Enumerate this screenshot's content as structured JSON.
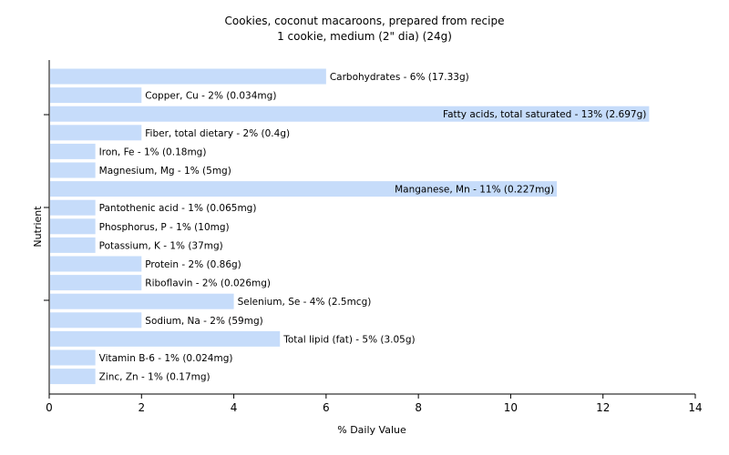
{
  "chart_data": {
    "type": "bar",
    "orientation": "horizontal",
    "title": "Cookies, coconut macaroons, prepared from recipe",
    "subtitle": "1 cookie, medium (2\" dia) (24g)",
    "xlabel": "% Daily Value",
    "ylabel": "Nutrient",
    "xlim": [
      0,
      14
    ],
    "xticks": [
      0,
      2,
      4,
      6,
      8,
      10,
      12,
      14
    ],
    "grid": false,
    "bar_color": "#c6dcfa",
    "categories": [
      "Carbohydrates",
      "Copper, Cu",
      "Fatty acids, total saturated",
      "Fiber, total dietary",
      "Iron, Fe",
      "Magnesium, Mg",
      "Manganese, Mn",
      "Pantothenic acid",
      "Phosphorus, P",
      "Potassium, K",
      "Protein",
      "Riboflavin",
      "Selenium, Se",
      "Sodium, Na",
      "Total lipid (fat)",
      "Vitamin B-6",
      "Zinc, Zn"
    ],
    "values": [
      6,
      2,
      13,
      2,
      1,
      1,
      11,
      1,
      1,
      1,
      2,
      2,
      4,
      2,
      5,
      1,
      1
    ],
    "labels": [
      "Carbohydrates - 6% (17.33g)",
      "Copper, Cu - 2% (0.034mg)",
      "Fatty acids, total saturated - 13% (2.697g)",
      "Fiber, total dietary - 2% (0.4g)",
      "Iron, Fe - 1% (0.18mg)",
      "Magnesium, Mg - 1% (5mg)",
      "Manganese, Mn - 11% (0.227mg)",
      "Pantothenic acid - 1% (0.065mg)",
      "Phosphorus, P - 1% (10mg)",
      "Potassium, K - 1% (37mg)",
      "Protein - 2% (0.86g)",
      "Riboflavin - 2% (0.026mg)",
      "Selenium, Se - 4% (2.5mcg)",
      "Sodium, Na - 2% (59mg)",
      "Total lipid (fat) - 5% (3.05g)",
      "Vitamin B-6 - 1% (0.024mg)",
      "Zinc, Zn - 1% (0.17mg)"
    ],
    "label_position": [
      "outside",
      "outside",
      "inside",
      "outside",
      "outside",
      "outside",
      "inside",
      "outside",
      "outside",
      "outside",
      "outside",
      "outside",
      "outside",
      "outside",
      "outside",
      "outside",
      "outside"
    ]
  }
}
